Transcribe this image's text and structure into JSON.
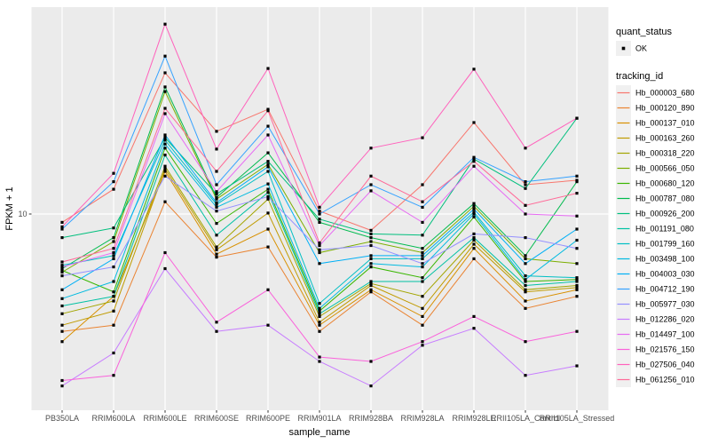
{
  "chart_data": {
    "type": "line",
    "title": "",
    "xlabel": "sample_name",
    "ylabel": "FPKM + 1",
    "y_scale": "log10",
    "y_ticks": [
      {
        "value": 10,
        "label": "10"
      }
    ],
    "grid": "on",
    "panel_bg": "#EBEBEB",
    "grid_color": "#FFFFFF",
    "point_color": "#000000",
    "axis_text_color": "#4D4D4D",
    "legend_key_bg": "#F0F0F0",
    "legend_position": "right",
    "categories": [
      "PB350LA",
      "RRIM600LA",
      "RRIM600LE",
      "RRIM600SE",
      "RRIM600PE",
      "RRIM901LA",
      "RRIM928BA",
      "RRIM928LA",
      "RRIM928LE",
      "RRII105LA_Control",
      "RRII105LA_Stressed"
    ],
    "legend": {
      "quant_status_title": "quant_status",
      "quant_status_items": [
        {
          "label": "OK",
          "shape": "point"
        }
      ],
      "tracking_id_title": "tracking_id"
    },
    "series": [
      {
        "name": "Hb_000003_680",
        "color": "#F8766D",
        "values": [
          9.2,
          12.8,
          40.9,
          22.8,
          28.4,
          10.3,
          8.5,
          13.4,
          24.9,
          13.4,
          14.0
        ]
      },
      {
        "name": "Hb_000120_890",
        "color": "#EA8331",
        "values": [
          3.1,
          3.3,
          11.3,
          6.5,
          7.2,
          3.1,
          4.6,
          3.3,
          6.4,
          3.9,
          4.4
        ]
      },
      {
        "name": "Hb_000137_010",
        "color": "#D89000",
        "values": [
          2.8,
          4.4,
          15.3,
          6.7,
          8.6,
          3.3,
          4.7,
          3.6,
          7.1,
          4.2,
          4.7
        ]
      },
      {
        "name": "Hb_000163_260",
        "color": "#C09B00",
        "values": [
          3.3,
          3.8,
          15.7,
          7.0,
          10.1,
          3.4,
          4.9,
          3.9,
          7.4,
          4.6,
          4.8
        ]
      },
      {
        "name": "Hb_000318_220",
        "color": "#A3A500",
        "values": [
          3.7,
          4.2,
          16.1,
          7.2,
          11.6,
          3.6,
          5.0,
          4.4,
          7.7,
          4.7,
          4.9
        ]
      },
      {
        "name": "Hb_000566_050",
        "color": "#7CAE00",
        "values": [
          5.6,
          7.6,
          33.9,
          11.6,
          16.4,
          6.8,
          7.6,
          6.8,
          10.8,
          6.4,
          6.1
        ]
      },
      {
        "name": "Hb_000680_120",
        "color": "#39B600",
        "values": [
          5.7,
          4.6,
          19.3,
          9.1,
          12.8,
          3.8,
          5.9,
          5.3,
          9.7,
          5.1,
          5.2
        ]
      },
      {
        "name": "Hb_000787_080",
        "color": "#00BB4E",
        "values": [
          5.8,
          7.9,
          35.5,
          11.8,
          18.4,
          9.2,
          7.9,
          7.1,
          11.1,
          6.6,
          13.8
        ]
      },
      {
        "name": "Hb_000926_200",
        "color": "#00BF7D",
        "values": [
          7.9,
          8.7,
          21.4,
          12.2,
          16.9,
          9.5,
          8.2,
          8.1,
          17.3,
          12.9,
          26.0
        ]
      },
      {
        "name": "Hb_001191_080",
        "color": "#00C1A3",
        "values": [
          4.0,
          4.4,
          18.0,
          8.1,
          12.4,
          3.7,
          5.1,
          5.1,
          7.9,
          4.9,
          5.1
        ]
      },
      {
        "name": "Hb_001799_160",
        "color": "#00BFC4",
        "values": [
          6.0,
          6.6,
          20.9,
          11.0,
          15.3,
          4.1,
          6.4,
          6.4,
          10.2,
          5.4,
          5.3
        ]
      },
      {
        "name": "Hb_003498_100",
        "color": "#00BAE0",
        "values": [
          4.3,
          5.1,
          20.1,
          10.7,
          13.5,
          3.9,
          6.1,
          5.9,
          10.0,
          5.2,
          7.7
        ]
      },
      {
        "name": "Hb_004003_030",
        "color": "#00B0F6",
        "values": [
          4.7,
          6.4,
          22.0,
          11.2,
          16.0,
          6.1,
          6.6,
          6.6,
          10.5,
          6.1,
          8.6
        ]
      },
      {
        "name": "Hb_004712_190",
        "color": "#35A2FF",
        "values": [
          8.6,
          13.8,
          48.3,
          13.4,
          24.0,
          10.0,
          13.4,
          10.7,
          17.6,
          13.8,
          14.6
        ]
      },
      {
        "name": "Hb_005977_030",
        "color": "#9590FF",
        "values": [
          5.4,
          5.9,
          14.6,
          10.3,
          11.9,
          7.0,
          7.3,
          6.1,
          8.2,
          7.9,
          7.1
        ]
      },
      {
        "name": "Hb_012286_020",
        "color": "#C77CFF",
        "values": [
          1.8,
          2.5,
          5.8,
          3.1,
          3.3,
          2.3,
          1.8,
          2.7,
          3.2,
          2.0,
          2.2
        ]
      },
      {
        "name": "Hb_014497_100",
        "color": "#E76BF3",
        "values": [
          5.9,
          6.8,
          27.2,
          12.5,
          22.0,
          7.3,
          12.6,
          9.2,
          16.1,
          10.0,
          9.8
        ]
      },
      {
        "name": "Hb_021576_150",
        "color": "#FA62DB",
        "values": [
          1.9,
          2.0,
          6.8,
          3.4,
          4.7,
          2.4,
          2.3,
          2.8,
          3.6,
          2.8,
          3.1
        ]
      },
      {
        "name": "Hb_027506_040",
        "color": "#FF62BC",
        "values": [
          8.8,
          15.0,
          66.4,
          19.1,
          42.7,
          10.7,
          19.3,
          21.4,
          42.4,
          19.3,
          26.0
        ]
      },
      {
        "name": "Hb_061256_010",
        "color": "#FF6A98",
        "values": [
          6.2,
          7.1,
          28.7,
          15.3,
          28.0,
          7.5,
          14.6,
          11.3,
          16.9,
          10.9,
          12.3
        ]
      }
    ]
  }
}
